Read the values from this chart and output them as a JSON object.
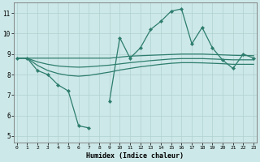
{
  "x_data": [
    0,
    1,
    2,
    3,
    4,
    5,
    6,
    7,
    8,
    9,
    10,
    11,
    12,
    13,
    14,
    15,
    16,
    17,
    18,
    19,
    20,
    21,
    22,
    23
  ],
  "y_main": [
    8.8,
    8.8,
    8.2,
    8.0,
    7.5,
    7.2,
    5.5,
    5.4,
    null,
    6.7,
    9.8,
    8.8,
    9.3,
    10.2,
    10.6,
    11.1,
    11.2,
    9.5,
    10.3,
    9.3,
    8.7,
    8.3,
    9.0,
    8.8
  ],
  "y_upper": [
    8.8,
    8.8,
    8.8,
    8.8,
    8.8,
    8.8,
    8.8,
    8.8,
    8.8,
    8.8,
    8.85,
    8.9,
    8.92,
    8.94,
    8.96,
    8.98,
    9.0,
    9.0,
    9.0,
    8.98,
    8.96,
    8.94,
    8.93,
    8.92
  ],
  "y_mid": [
    8.8,
    8.8,
    8.62,
    8.5,
    8.42,
    8.38,
    8.36,
    8.38,
    8.42,
    8.46,
    8.52,
    8.58,
    8.63,
    8.68,
    8.72,
    8.76,
    8.78,
    8.78,
    8.78,
    8.76,
    8.74,
    8.72,
    8.72,
    8.72
  ],
  "y_lower": [
    8.8,
    8.8,
    8.45,
    8.2,
    8.05,
    7.96,
    7.92,
    7.96,
    8.04,
    8.12,
    8.22,
    8.3,
    8.38,
    8.44,
    8.5,
    8.55,
    8.58,
    8.58,
    8.57,
    8.55,
    8.53,
    8.5,
    8.5,
    8.5
  ],
  "line_color": "#2d7d6e",
  "bg_color": "#cde8e8",
  "grid_color": "#b0d0d0",
  "xlabel": "Humidex (Indice chaleur)",
  "ylabel_ticks": [
    5,
    6,
    7,
    8,
    9,
    10,
    11
  ],
  "xlim": [
    0,
    23
  ],
  "ylim": [
    4.7,
    11.5
  ],
  "xticks": [
    0,
    1,
    2,
    3,
    4,
    5,
    6,
    7,
    8,
    9,
    10,
    11,
    12,
    13,
    14,
    15,
    16,
    17,
    18,
    19,
    20,
    21,
    22,
    23
  ]
}
